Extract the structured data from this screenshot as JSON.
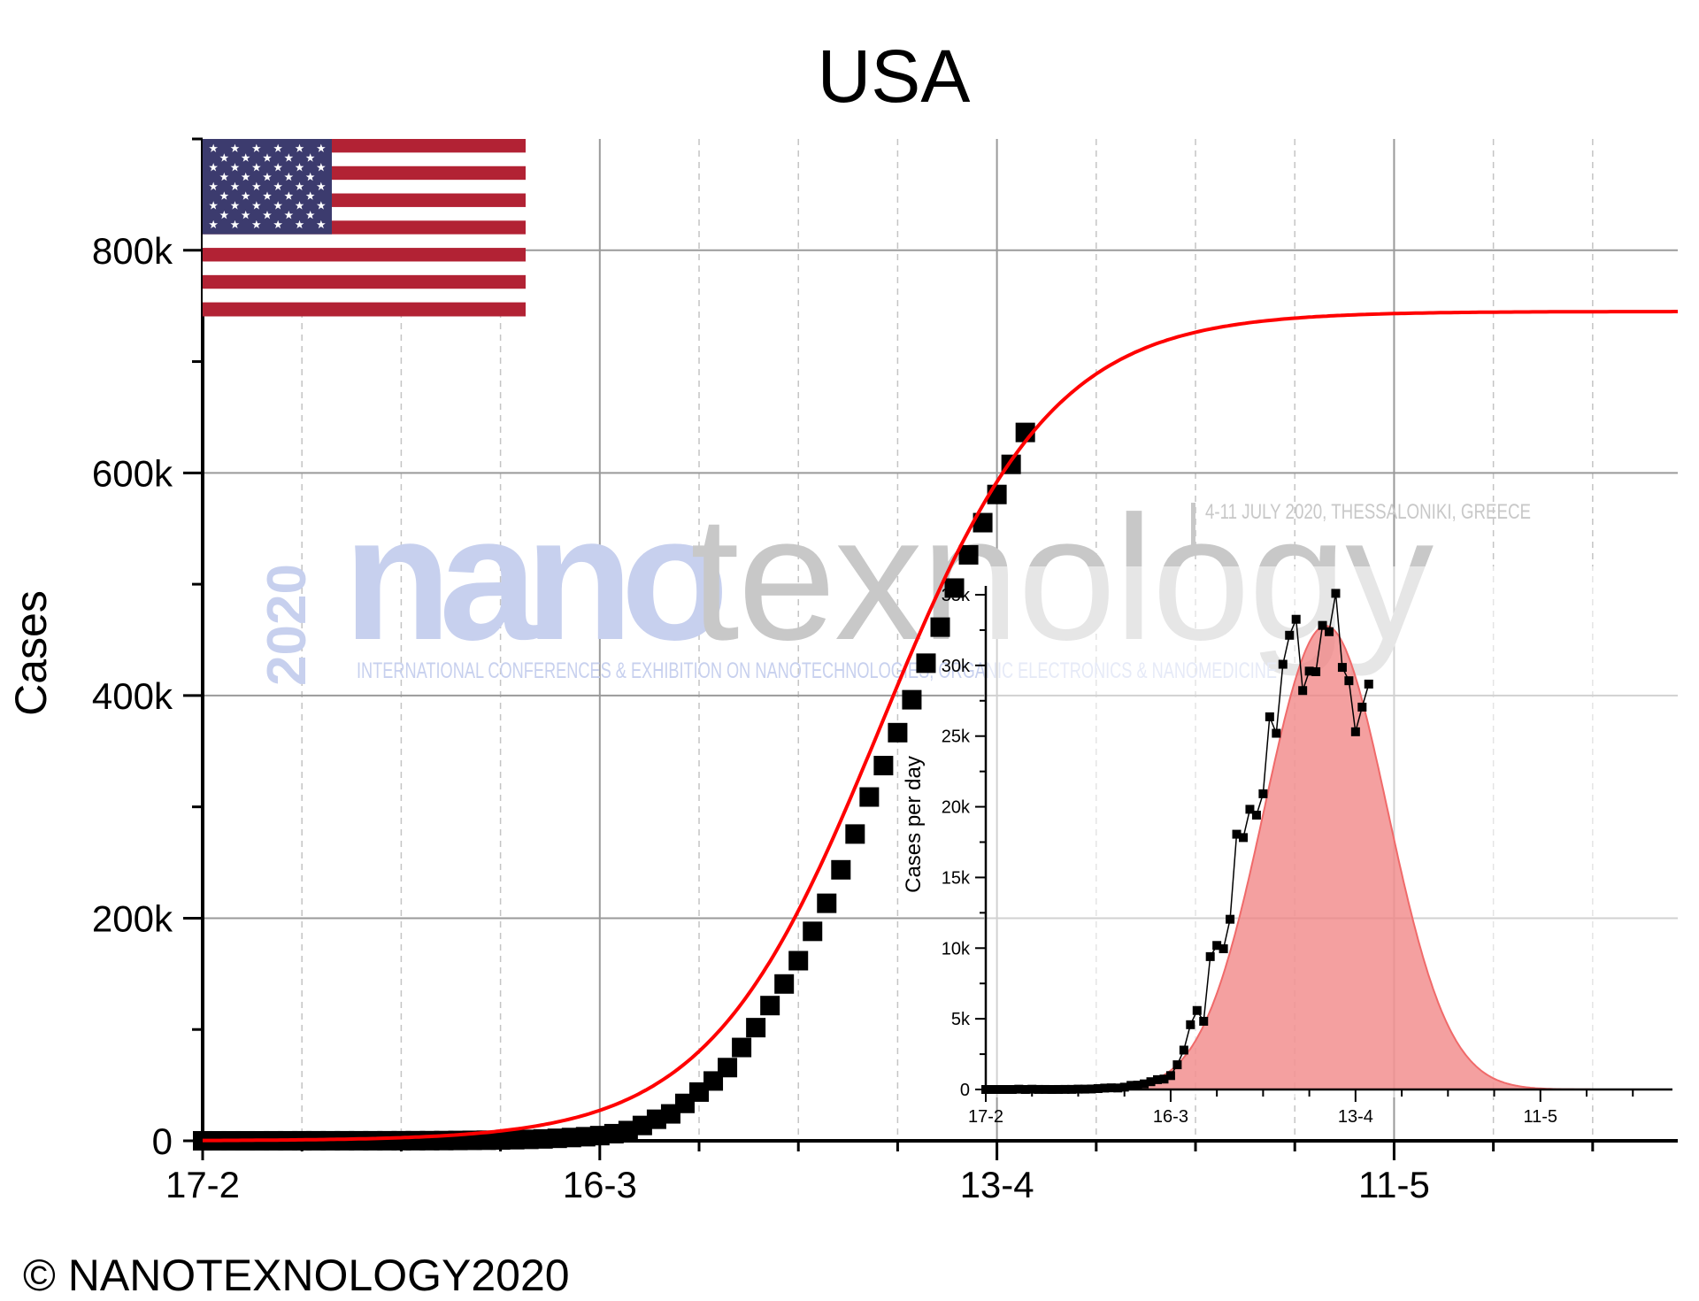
{
  "chart_data": [
    {
      "type": "scatter",
      "title": "USA",
      "xlabel": "",
      "ylabel": "Cases",
      "x_tick_labels": [
        "17-2",
        "16-3",
        "13-4",
        "11-5"
      ],
      "x_ticks_day": [
        0,
        28,
        56,
        84
      ],
      "xlim_day": [
        0,
        104
      ],
      "y_tick_labels": [
        "0",
        "200k",
        "400k",
        "600k",
        "800k"
      ],
      "y_ticks": [
        0,
        200000,
        400000,
        600000,
        800000
      ],
      "ylim": [
        0,
        900000
      ],
      "grid": true,
      "series": [
        {
          "kind": "points",
          "color": "#000000",
          "x": [
            "17-2",
            "18-2",
            "19-2",
            "20-2",
            "21-2",
            "22-2",
            "23-2",
            "24-2",
            "25-2",
            "26-2",
            "27-2",
            "28-2",
            "29-2",
            "1-3",
            "2-3",
            "3-3",
            "4-3",
            "5-3",
            "6-3",
            "7-3",
            "8-3",
            "9-3",
            "10-3",
            "11-3",
            "12-3",
            "13-3",
            "14-3",
            "15-3",
            "16-3",
            "17-3",
            "18-3",
            "19-3",
            "20-3",
            "21-3",
            "22-3",
            "23-3",
            "24-3",
            "25-3",
            "26-3",
            "27-3",
            "28-3",
            "29-3",
            "30-3",
            "31-3",
            "1-4",
            "2-4",
            "3-4",
            "4-4",
            "5-4",
            "6-4",
            "7-4",
            "8-4",
            "9-4",
            "10-4",
            "11-4",
            "12-4",
            "13-4",
            "14-4",
            "15-4"
          ],
          "y": [
            15,
            15,
            15,
            15,
            15,
            35,
            35,
            53,
            57,
            60,
            60,
            62,
            68,
            75,
            100,
            124,
            158,
            221,
            319,
            435,
            541,
            704,
            994,
            1301,
            1697,
            2247,
            2943,
            3680,
            4663,
            6411,
            9197,
            13779,
            19367,
            24192,
            33592,
            43781,
            53736,
            65778,
            83836,
            101657,
            121478,
            140886,
            161807,
            188172,
            213372,
            243453,
            275586,
            308850,
            337072,
            366667,
            396223,
            429052,
            461437,
            496535,
            526396,
            555313,
            580619,
            607670,
            636350
          ]
        },
        {
          "kind": "fit",
          "color": "#ff0000",
          "model": "logistic",
          "plateau": 745000,
          "midpoint_day": 47.8,
          "growth_rate_per_day": 0.165
        }
      ]
    },
    {
      "type": "area",
      "title": "",
      "xlabel": "",
      "ylabel": "Cases per day",
      "x_tick_labels": [
        "17-2",
        "16-3",
        "13-4",
        "11-5"
      ],
      "x_ticks_day": [
        0,
        28,
        56,
        84
      ],
      "xlim_day": [
        0,
        104
      ],
      "y_tick_labels": [
        "0",
        "5k",
        "10k",
        "15k",
        "20k",
        "25k",
        "30k",
        "35k"
      ],
      "y_ticks": [
        0,
        5000,
        10000,
        15000,
        20000,
        25000,
        30000,
        35000
      ],
      "ylim": [
        0,
        35000
      ],
      "grid": false,
      "series": [
        {
          "kind": "points_line",
          "color": "#000000",
          "x": [
            "17-2",
            "18-2",
            "19-2",
            "20-2",
            "21-2",
            "22-2",
            "23-2",
            "24-2",
            "25-2",
            "26-2",
            "27-2",
            "28-2",
            "29-2",
            "1-3",
            "2-3",
            "3-3",
            "4-3",
            "5-3",
            "6-3",
            "7-3",
            "8-3",
            "9-3",
            "10-3",
            "11-3",
            "12-3",
            "13-3",
            "14-3",
            "15-3",
            "16-3",
            "17-3",
            "18-3",
            "19-3",
            "20-3",
            "21-3",
            "22-3",
            "23-3",
            "24-3",
            "25-3",
            "26-3",
            "27-3",
            "28-3",
            "29-3",
            "30-3",
            "31-3",
            "1-4",
            "2-4",
            "3-4",
            "4-4",
            "5-4",
            "6-4",
            "7-4",
            "8-4",
            "9-4",
            "10-4",
            "11-4",
            "12-4",
            "13-4",
            "14-4",
            "15-4"
          ],
          "y": [
            0,
            0,
            0,
            0,
            0,
            20,
            0,
            18,
            4,
            3,
            0,
            2,
            6,
            7,
            25,
            24,
            34,
            63,
            98,
            116,
            106,
            163,
            290,
            307,
            396,
            550,
            696,
            737,
            983,
            1748,
            2786,
            4582,
            5588,
            4825,
            9400,
            10189,
            9955,
            12042,
            18058,
            17821,
            19821,
            19408,
            20921,
            26365,
            25200,
            30081,
            32133,
            33264,
            28222,
            29595,
            29556,
            32829,
            32385,
            35098,
            29861,
            28917,
            25306,
            27051,
            28680
          ]
        },
        {
          "kind": "gaussian_fill",
          "color": "#f08080",
          "peak": 32800,
          "center_day": 51.5,
          "sigma_days": 9.3
        }
      ]
    }
  ],
  "text": {
    "title": "USA",
    "copyright": "© NANOTEXNOLOGY2020"
  },
  "watermark": {
    "year": "2020",
    "nano": "nano",
    "texnology": "texnology",
    "tagline": "INTERNATIONAL CONFERENCES & EXHIBITION ON NANOTECHNOLOGIES, ORGANIC ELECTRONICS & NANOMEDICINE",
    "date_place": "4-11 JULY 2020, THESSALONIKI, GREECE"
  },
  "colors": {
    "fit_line": "#ff0000",
    "points": "#000000",
    "area_fill": "#f08080",
    "flag_red": "#b22234",
    "flag_blue": "#3c3b6e",
    "watermark_blue": "#c7d0ee",
    "watermark_grey": "#c8c8c8"
  },
  "icons": {
    "flag": "usa-flag-icon"
  }
}
